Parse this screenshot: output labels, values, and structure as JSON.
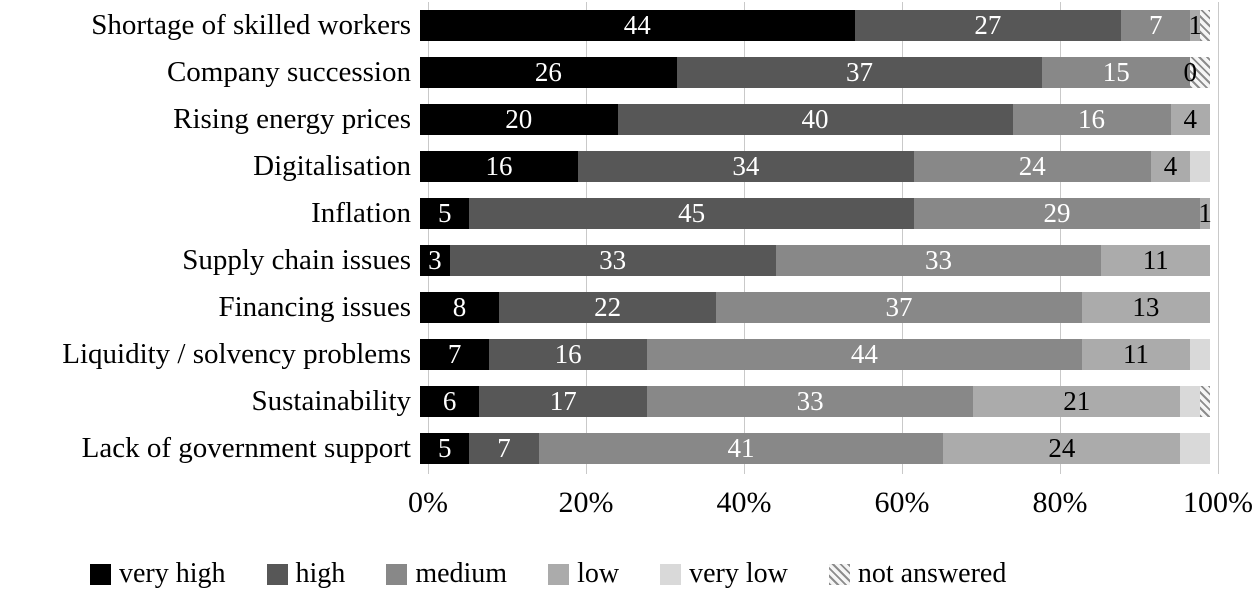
{
  "chart_data": {
    "type": "bar",
    "orientation": "horizontal-stacked",
    "title": "",
    "xlabel": "",
    "ylabel": "",
    "xlim": [
      0,
      100
    ],
    "x_ticks": [
      "0%",
      "20%",
      "40%",
      "60%",
      "80%",
      "100%"
    ],
    "grid": true,
    "legend_position": "bottom",
    "total": 80,
    "categories": [
      "Shortage of skilled workers",
      "Company succession",
      "Rising energy prices",
      "Digitalisation",
      "Inflation",
      "Supply chain issues",
      "Financing issues",
      "Liquidity / solvency problems",
      "Sustainability",
      "Lack of government support"
    ],
    "series": [
      {
        "name": "very high",
        "color": "#000000",
        "label_color": "#ffffff",
        "show_labels": true,
        "values": [
          44,
          26,
          20,
          16,
          5,
          3,
          8,
          7,
          6,
          5
        ]
      },
      {
        "name": "high",
        "color": "#575757",
        "label_color": "#ffffff",
        "show_labels": true,
        "values": [
          27,
          37,
          40,
          34,
          45,
          33,
          22,
          16,
          17,
          7
        ]
      },
      {
        "name": "medium",
        "color": "#888888",
        "label_color": "#ffffff",
        "show_labels": true,
        "values": [
          7,
          15,
          16,
          24,
          29,
          33,
          37,
          44,
          33,
          41
        ]
      },
      {
        "name": "low",
        "color": "#ababab",
        "label_color": "#000000",
        "show_labels": true,
        "values": [
          1,
          0,
          4,
          4,
          1,
          11,
          13,
          11,
          21,
          24
        ]
      },
      {
        "name": "very low",
        "color": "#d9d9d9",
        "label_color": "#000000",
        "show_labels": false,
        "values": [
          0,
          0,
          0,
          2,
          0,
          0,
          0,
          2,
          2,
          3
        ]
      },
      {
        "name": "not answered",
        "color": "hatch",
        "label_color": "#000000",
        "show_labels": false,
        "pattern": "hatch",
        "values": [
          1,
          2,
          0,
          0,
          0,
          0,
          0,
          0,
          1,
          0
        ]
      }
    ]
  }
}
